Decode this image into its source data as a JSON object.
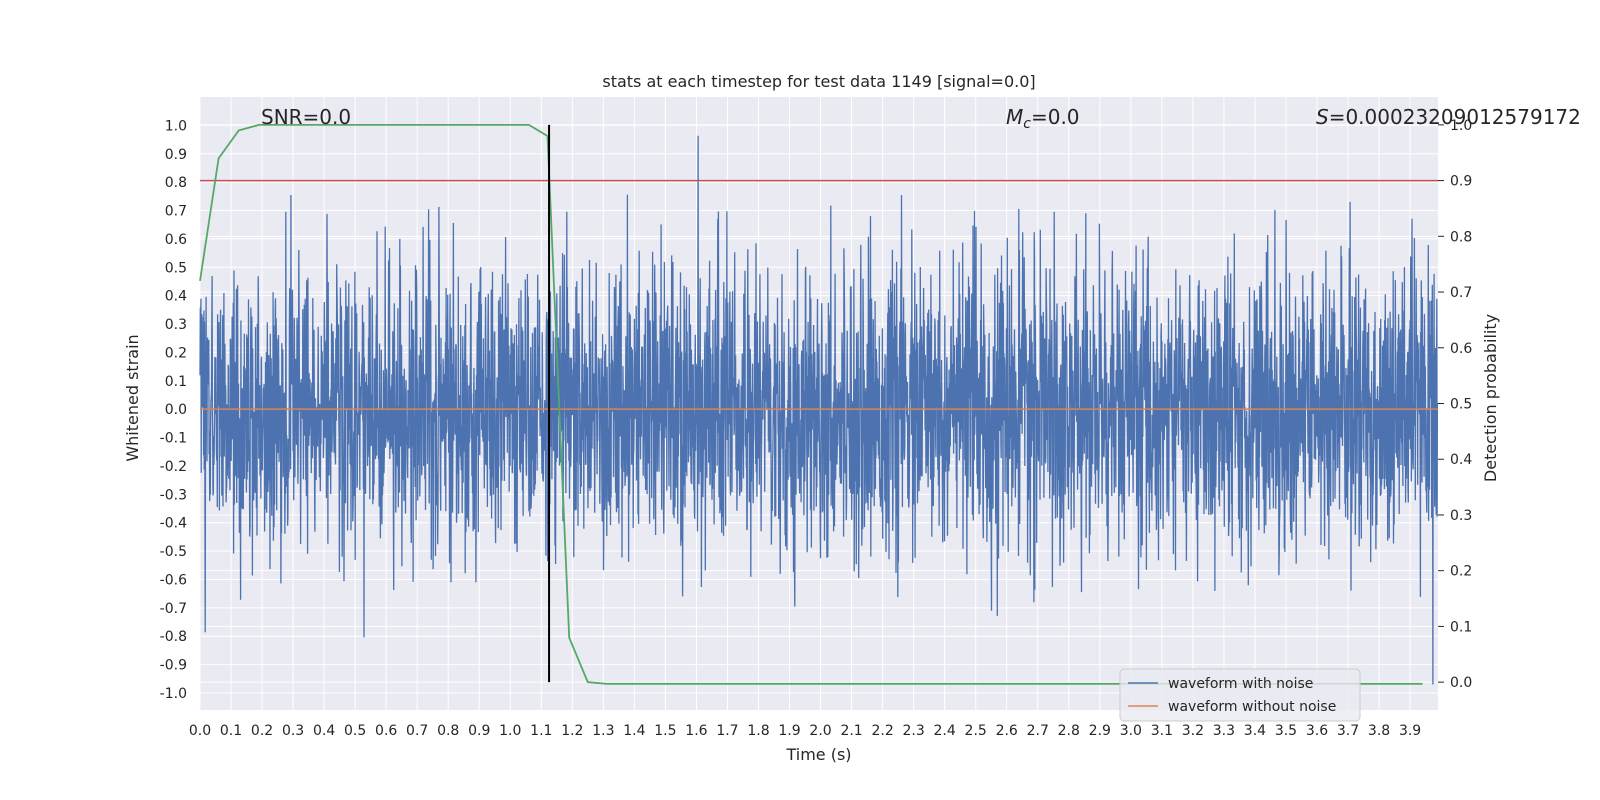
{
  "chart_data": {
    "type": "line",
    "title": "stats at each timestep for test data 1149 [signal=0.0]",
    "xlabel": "Time (s)",
    "ylabel": "Whitened strain",
    "y2label": "Detection probability",
    "xlim": [
      0.0,
      3.99
    ],
    "ylim": [
      -1.06,
      1.1
    ],
    "y2lim": [
      -0.05,
      1.05
    ],
    "grid": true,
    "x_ticks": [
      "0.0",
      "0.1",
      "0.2",
      "0.3",
      "0.4",
      "0.5",
      "0.6",
      "0.7",
      "0.8",
      "0.9",
      "1.0",
      "1.1",
      "1.2",
      "1.3",
      "1.4",
      "1.5",
      "1.6",
      "1.7",
      "1.8",
      "1.9",
      "2.0",
      "2.1",
      "2.2",
      "2.3",
      "2.4",
      "2.5",
      "2.6",
      "2.7",
      "2.8",
      "2.9",
      "3.0",
      "3.1",
      "3.2",
      "3.3",
      "3.4",
      "3.5",
      "3.6",
      "3.7",
      "3.8",
      "3.9"
    ],
    "y_ticks": [
      "1.0",
      "0.9",
      "0.8",
      "0.7",
      "0.6",
      "0.5",
      "0.4",
      "0.3",
      "0.2",
      "0.1",
      "0.0",
      "-0.1",
      "-0.2",
      "-0.3",
      "-0.4",
      "-0.5",
      "-0.6",
      "-0.7",
      "-0.8",
      "-0.9",
      "-1.0"
    ],
    "y2_ticks": [
      "1.0",
      "0.9",
      "0.8",
      "0.7",
      "0.6",
      "0.5",
      "0.4",
      "0.3",
      "0.2",
      "0.1",
      "0.0"
    ],
    "annotations": {
      "snr": "SNR=0.0",
      "mc_symbol": "M",
      "mc_sub": "c",
      "mc_value": "=0.0",
      "s_symbol": "S",
      "s_value": "=0.00023209012579172"
    },
    "legend": {
      "position": "lower-right",
      "entries": [
        "waveform with noise",
        "waveform without noise"
      ]
    },
    "colors": {
      "noisy": "#4c72b0",
      "clean": "#dd8452",
      "probability": "#55a868",
      "threshold": "#c44e52",
      "marker": "#000000",
      "axes_bg": "#eaeaf2",
      "grid": "#ffffff"
    },
    "series": [
      {
        "name": "waveform with noise",
        "axis": "left",
        "kind": "random-noise",
        "n_points": 4096,
        "x_start": 0.0,
        "x_step": 0.000977,
        "approx_std": 0.25,
        "approx_max": 1.0,
        "approx_min": -0.97
      },
      {
        "name": "waveform without noise",
        "axis": "left",
        "x": [
          0.0,
          3.99
        ],
        "y": [
          0.0,
          0.0
        ]
      },
      {
        "name": "detection probability",
        "axis": "right",
        "x": [
          0.0,
          0.06,
          0.125,
          0.19,
          0.25,
          0.5,
          0.75,
          1.0,
          1.06,
          1.12,
          1.19,
          1.25,
          1.31,
          1.5,
          2.0,
          2.5,
          3.0,
          3.5,
          3.94
        ],
        "y": [
          0.72,
          0.94,
          0.99,
          1.0,
          1.0,
          1.0,
          1.0,
          1.0,
          1.0,
          0.98,
          0.08,
          0.0,
          -0.003,
          -0.003,
          -0.003,
          -0.003,
          -0.003,
          -0.003,
          -0.003
        ]
      },
      {
        "name": "threshold",
        "axis": "right",
        "x": [
          0.0,
          3.99
        ],
        "y": [
          0.9,
          0.9
        ]
      },
      {
        "name": "detection time",
        "axis": "right",
        "kind": "vline",
        "x": 1.125,
        "y_range": [
          0.0,
          1.0
        ]
      }
    ]
  }
}
